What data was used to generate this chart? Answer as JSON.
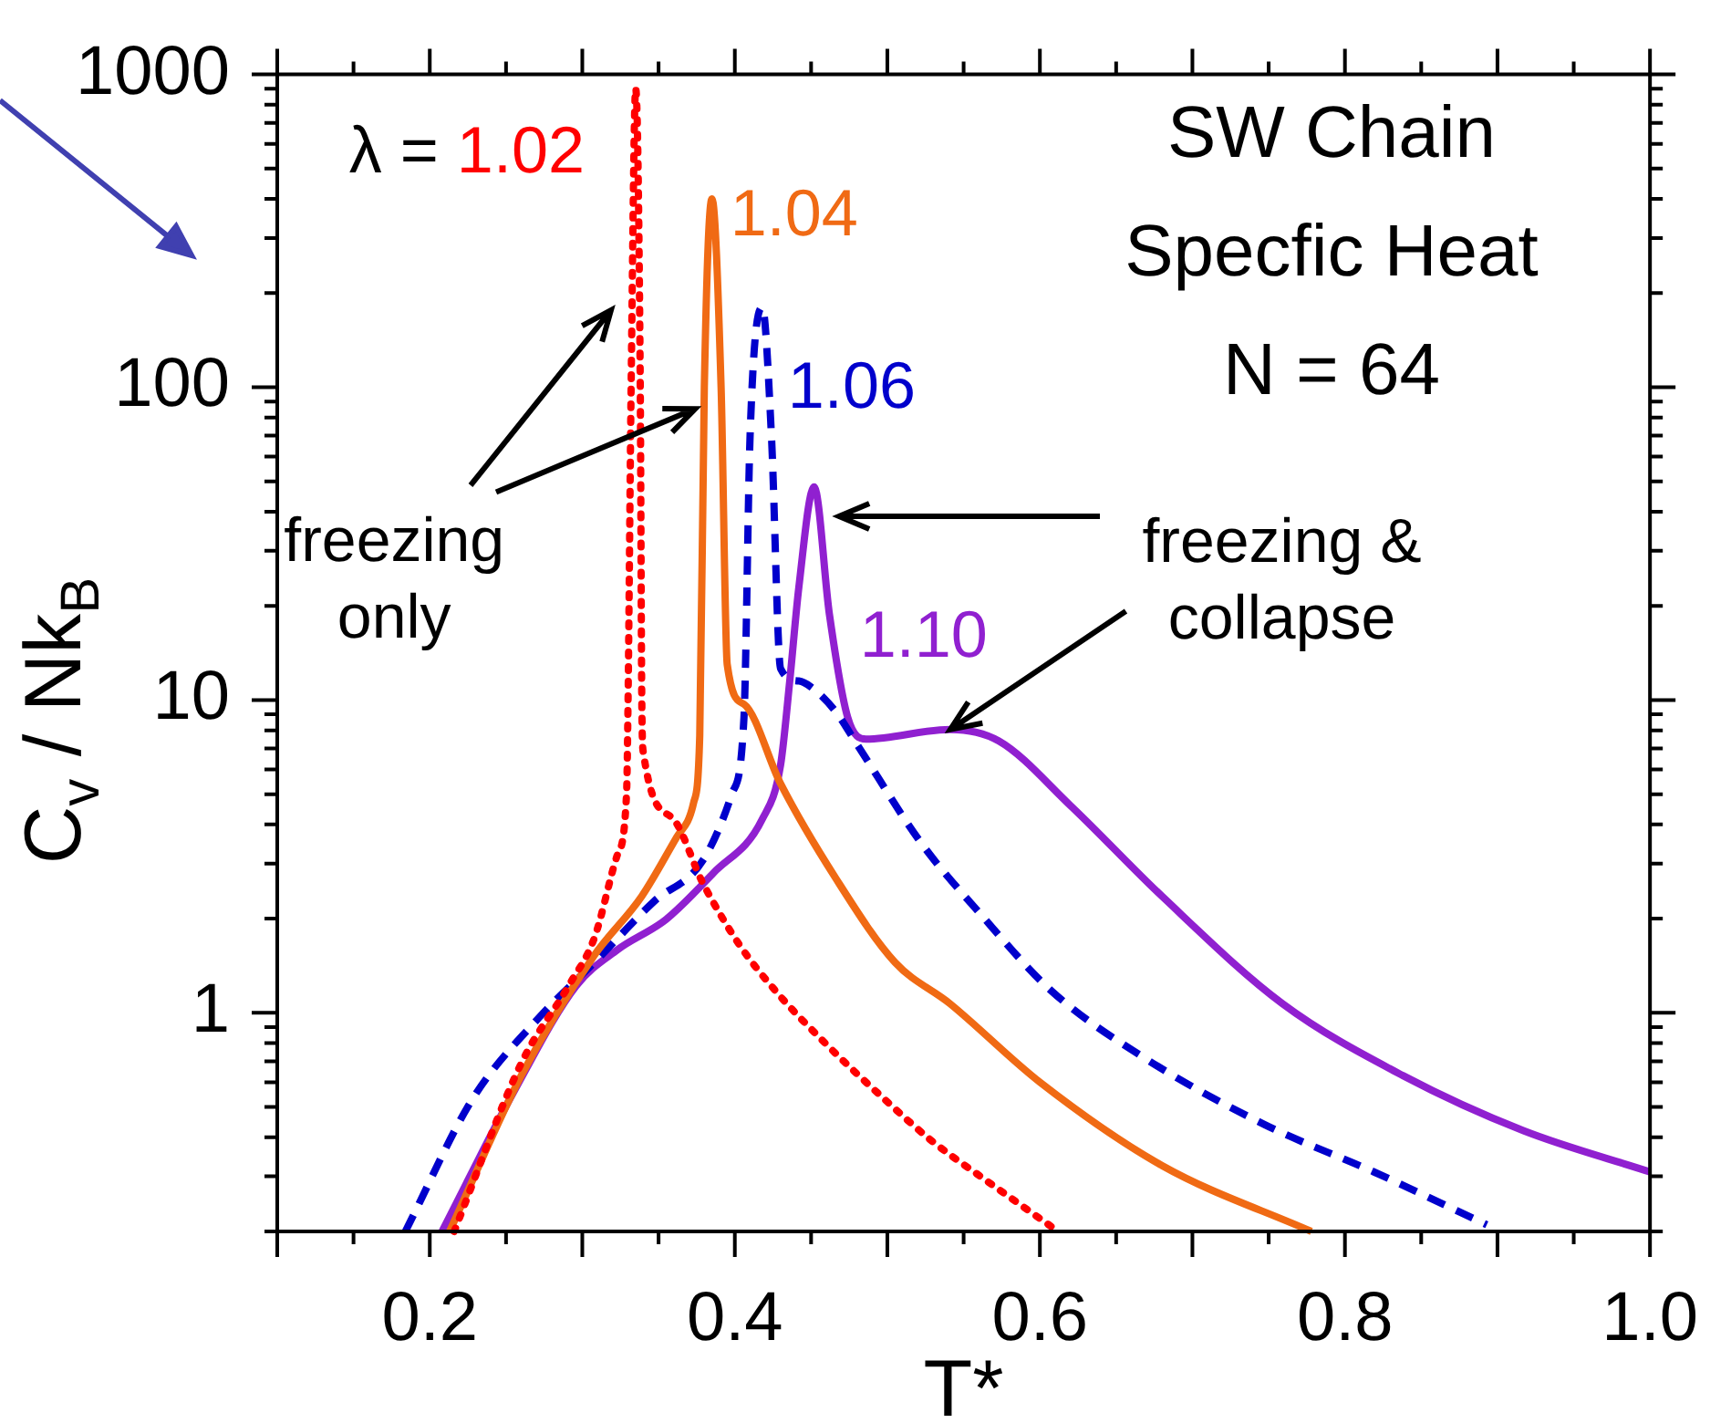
{
  "chart_data": {
    "type": "line",
    "title": "SW Chain",
    "subtitle": "Specfic Heat",
    "xlabel": "T*",
    "ylabel": "C$_{v}$ / Nk$_{B}$",
    "legend_title": "λ =",
    "legend": false,
    "grid": false,
    "log": true,
    "marker": "none",
    "xlim": [
      0.1,
      1.0
    ],
    "ylim": [
      0.2,
      1000
    ],
    "xticks": [
      {
        "value": 0.1,
        "label": null
      },
      {
        "value": 0.15,
        "label": null
      },
      0.2,
      {
        "value": 0.25,
        "label": null
      },
      {
        "value": 0.3,
        "label": null
      },
      {
        "value": 0.35,
        "label": null
      },
      0.4,
      {
        "value": 0.45,
        "label": null
      },
      {
        "value": 0.5,
        "label": null
      },
      {
        "value": 0.55,
        "label": null
      },
      0.6,
      {
        "value": 0.65,
        "label": null
      },
      {
        "value": 0.7,
        "label": null
      },
      {
        "value": 0.75,
        "label": null
      },
      0.8,
      {
        "value": 0.85,
        "label": null
      },
      {
        "value": 0.9,
        "label": null
      },
      {
        "value": 0.95,
        "label": null
      },
      {
        "value": 1.0,
        "label": "1.0"
      }
    ],
    "yticks": [
      {
        "value": 0.2,
        "label": null
      },
      {
        "value": 0.3,
        "label": null
      },
      {
        "value": 0.4,
        "label": null
      },
      {
        "value": 0.5,
        "label": null
      },
      {
        "value": 0.6,
        "label": null
      },
      {
        "value": 0.7,
        "label": null
      },
      {
        "value": 0.8,
        "label": null
      },
      {
        "value": 0.9,
        "label": null
      },
      1,
      {
        "value": 2,
        "label": null
      },
      {
        "value": 3,
        "label": null
      },
      {
        "value": 4,
        "label": null
      },
      {
        "value": 5,
        "label": null
      },
      {
        "value": 6,
        "label": null
      },
      {
        "value": 7,
        "label": null
      },
      {
        "value": 8,
        "label": null
      },
      {
        "value": 9,
        "label": null
      },
      10,
      {
        "value": 20,
        "label": null
      },
      {
        "value": 30,
        "label": null
      },
      {
        "value": 40,
        "label": null
      },
      {
        "value": 50,
        "label": null
      },
      {
        "value": 60,
        "label": null
      },
      {
        "value": 70,
        "label": null
      },
      {
        "value": 80,
        "label": null
      },
      {
        "value": 90,
        "label": null
      },
      100,
      {
        "value": 200,
        "label": null
      },
      {
        "value": 300,
        "label": null
      },
      {
        "value": 400,
        "label": null
      },
      {
        "value": 500,
        "label": null
      },
      {
        "value": 600,
        "label": null
      },
      {
        "value": 700,
        "label": null
      },
      {
        "value": 800,
        "label": null
      },
      {
        "value": 900,
        "label": null
      },
      1000
    ],
    "series": [
      {
        "name": "1.02",
        "color": "#ff0000",
        "line_style": "dotted",
        "x": [
          0.216,
          0.26,
          0.291,
          0.308,
          0.323,
          0.329,
          0.33,
          0.332,
          0.335,
          0.338,
          0.339,
          0.34,
          0.359,
          0.379,
          0.403,
          0.427,
          0.457,
          0.498,
          0.529,
          0.561,
          0.612
        ],
        "values": [
          0.2,
          0.69,
          1.22,
          1.74,
          3.2,
          5,
          10,
          100,
          900,
          100,
          10,
          6.8,
          4.2,
          2.6,
          1.65,
          1.17,
          0.82,
          0.53,
          0.39,
          0.3,
          0.2
        ]
      },
      {
        "name": "1.04",
        "color": "#f06a14",
        "line_style": "solid",
        "x": [
          0.213,
          0.26,
          0.308,
          0.339,
          0.362,
          0.373,
          0.377,
          0.38,
          0.385,
          0.391,
          0.395,
          0.406,
          0.43,
          0.466,
          0.505,
          0.541,
          0.6,
          0.68,
          0.778
        ],
        "values": [
          0.2,
          0.63,
          1.53,
          2.36,
          3.65,
          4.7,
          7.7,
          100,
          400,
          100,
          13,
          9.7,
          5.4,
          2.7,
          1.45,
          1.07,
          0.6,
          0.325,
          0.2
        ]
      },
      {
        "name": "1.06",
        "color": "#0000cc",
        "line_style": "dashed",
        "x": [
          0.184,
          0.228,
          0.272,
          0.308,
          0.347,
          0.379,
          0.398,
          0.406,
          0.41,
          0.418,
          0.424,
          0.43,
          0.442,
          0.45,
          0.466,
          0.481,
          0.522,
          0.561,
          0.608,
          0.668,
          0.747,
          0.819,
          0.893
        ],
        "values": [
          0.2,
          0.53,
          0.97,
          1.45,
          2.27,
          3.07,
          5,
          8.8,
          70,
          180,
          70,
          12.6,
          11.5,
          11,
          9.2,
          7.1,
          3.5,
          2.07,
          1.17,
          0.72,
          0.44,
          0.31,
          0.21
        ]
      },
      {
        "name": "1.10",
        "color": "#9020d0",
        "line_style": "solid",
        "x": [
          0.208,
          0.256,
          0.296,
          0.323,
          0.355,
          0.386,
          0.418,
          0.43,
          0.436,
          0.442,
          0.452,
          0.462,
          0.474,
          0.486,
          0.541,
          0.573,
          0.62,
          0.68,
          0.759,
          0.838,
          0.917,
          1.0
        ],
        "values": [
          0.2,
          0.57,
          1.22,
          1.59,
          1.99,
          2.8,
          4.16,
          6.2,
          11.5,
          23,
          48,
          18.8,
          8.8,
          7.5,
          8.05,
          7.4,
          4.6,
          2.36,
          1.07,
          0.63,
          0.42,
          0.31
        ]
      }
    ],
    "annotations": [
      "N = 64",
      {
        "text": "freezing only",
        "x": 0.374,
        "y": 85
      },
      {
        "text": "freezing & collapse",
        "x": 0.541,
        "y": 8.05
      }
    ]
  }
}
